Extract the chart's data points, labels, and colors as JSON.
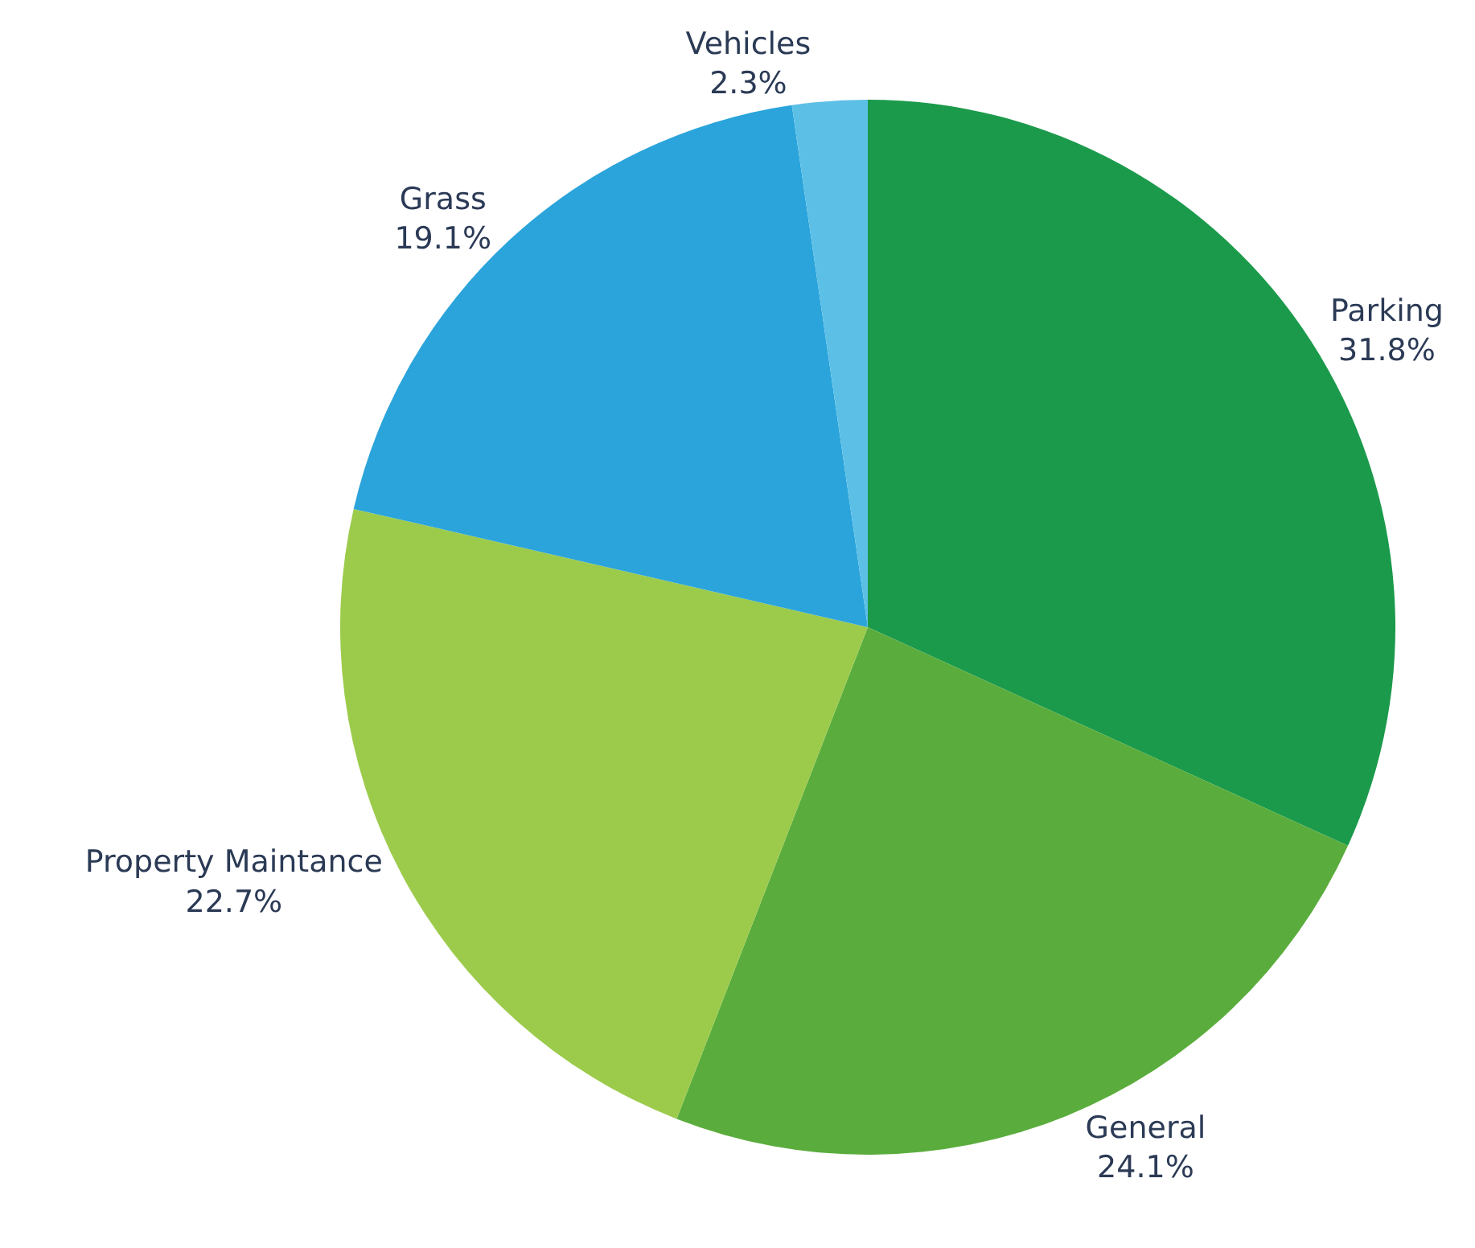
{
  "chart_data": {
    "type": "pie",
    "categories": [
      "Parking",
      "General",
      "Property Maintance",
      "Grass",
      "Vehicles"
    ],
    "values": [
      31.8,
      24.1,
      22.7,
      19.1,
      2.3
    ],
    "value_labels": [
      "31.8%",
      "24.1%",
      "22.7%",
      "19.1%",
      "2.3%"
    ],
    "colors": [
      "#1b9a4b",
      "#5aad3c",
      "#9ccb4c",
      "#2aa4db",
      "#5cbfe6"
    ],
    "legend": false
  }
}
